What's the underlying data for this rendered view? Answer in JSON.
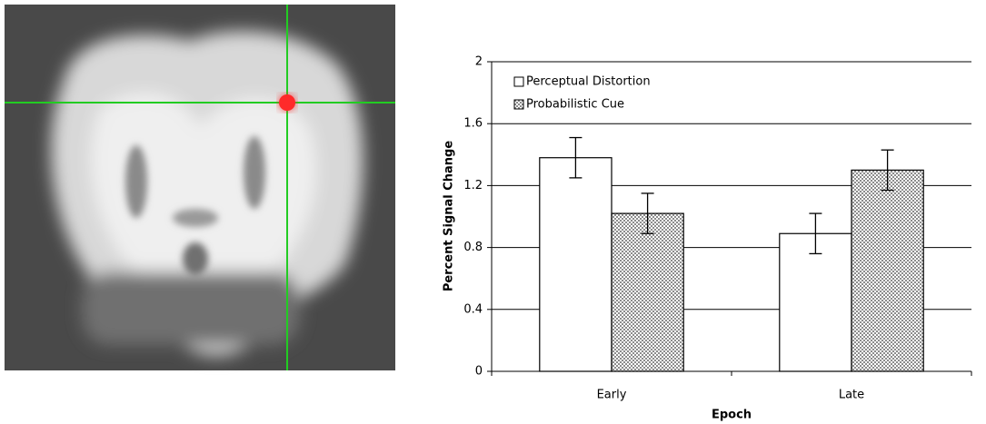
{
  "chart_data": {
    "type": "bar",
    "xlabel": "Epoch",
    "ylabel": "Percent Signal Change",
    "categories": [
      "Early",
      "Late"
    ],
    "series": [
      {
        "name": "Perceptual Distortion",
        "color": "#ffffff",
        "values": [
          1.38,
          0.89
        ],
        "errors": [
          0.13,
          0.13
        ]
      },
      {
        "name": "Probabilistic Cue",
        "color": "#8c8c8c",
        "values": [
          1.02,
          1.3
        ],
        "errors": [
          0.13,
          0.13
        ]
      }
    ],
    "ylim": [
      0,
      2
    ],
    "yticks": [
      0,
      0.4,
      0.8,
      1.2,
      1.6,
      2
    ],
    "grid": true,
    "legend": "upper left"
  }
}
